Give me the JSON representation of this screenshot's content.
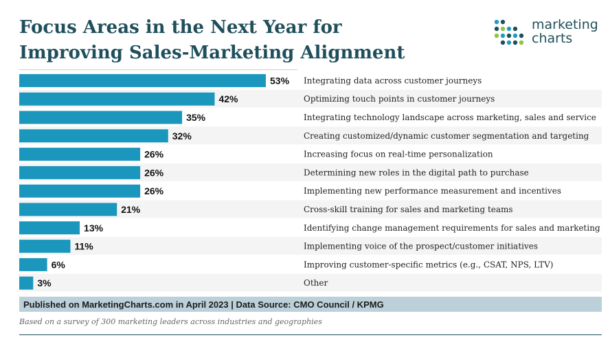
{
  "header": {
    "title_line1": "Focus Areas in the Next Year for",
    "title_line2": "Improving Sales-Marketing Alignment"
  },
  "logo": {
    "line1": "marketing",
    "line2": "charts",
    "dot_colors": [
      "#1f9bc2",
      "#1f4f5c",
      "#8cc63e",
      "#1f9bc2",
      "#1f4f5c"
    ]
  },
  "chart_data": {
    "type": "bar",
    "orientation": "horizontal",
    "title": "Focus Areas in the Next Year for Improving Sales-Marketing Alignment",
    "categories": [
      "Integrating data across customer journeys",
      "Optimizing touch points in customer journeys",
      "Integrating technology landscape across marketing, sales and service",
      "Creating customized/dynamic customer segmentation and targeting",
      "Increasing focus on real-time personalization",
      "Determining new roles in the digital path to purchase",
      "Implementing new performance measurement and incentives",
      "Cross-skill training for sales and marketing teams",
      "Identifying change management requirements for sales and marketing",
      "Implementing voice of the prospect/customer initiatives",
      "Improving customer-specific metrics (e.g., CSAT, NPS, LTV)",
      "Other"
    ],
    "values": [
      53,
      42,
      35,
      32,
      26,
      26,
      26,
      21,
      13,
      11,
      6,
      3
    ],
    "value_labels": [
      "53%",
      "42%",
      "35%",
      "32%",
      "26%",
      "26%",
      "26%",
      "21%",
      "13%",
      "11%",
      "6%",
      "3%"
    ],
    "unit": "%",
    "xlim": [
      0,
      53
    ],
    "bar_color": "#1b97bd",
    "row_band_color": "#f4f4f4"
  },
  "footer": {
    "published": "Published on MarketingCharts.com in April 2023 | Data Source: CMO Council / KPMG",
    "note": "Based on a survey of 300 marketing leaders across industries and geographies"
  }
}
